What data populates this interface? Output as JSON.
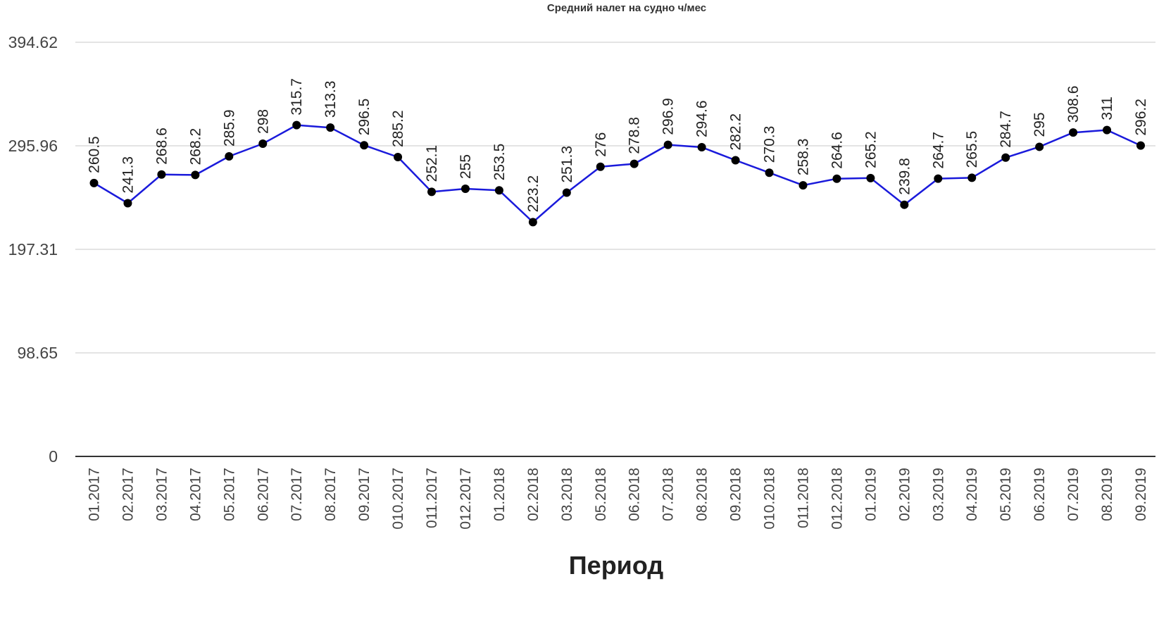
{
  "chart_data": {
    "type": "line",
    "title": "Средний налет на судно ч/мес",
    "xlabel": "Период",
    "ylabel": "",
    "ylim": [
      0,
      394.62
    ],
    "yticks": [
      "0",
      "98.65",
      "197.31",
      "295.96",
      "394.62"
    ],
    "grid": true,
    "line_color": "#1a1adb",
    "marker_color": "#000000",
    "categories": [
      "01.2017",
      "02.2017",
      "03.2017",
      "04.2017",
      "05.2017",
      "06.2017",
      "07.2017",
      "08.2017",
      "09.2017",
      "010.2017",
      "011.2017",
      "012.2017",
      "01.2018",
      "02.2018",
      "03.2018",
      "05.2018",
      "06.2018",
      "07.2018",
      "08.2018",
      "09.2018",
      "010.2018",
      "011.2018",
      "012.2018",
      "01.2019",
      "02.2019",
      "03.2019",
      "04.2019",
      "05.2019",
      "06.2019",
      "07.2019",
      "08.2019",
      "09.2019"
    ],
    "series": [
      {
        "values": [
          260.5,
          241.3,
          268.6,
          268.2,
          285.9,
          298,
          315.7,
          313.3,
          296.5,
          285.2,
          252.1,
          255,
          253.5,
          223.2,
          251.3,
          276,
          278.8,
          296.9,
          294.6,
          282.2,
          270.3,
          258.3,
          264.6,
          265.2,
          239.8,
          264.7,
          265.5,
          284.7,
          295,
          308.6,
          311,
          296.2
        ],
        "labels": [
          "260.5",
          "241.3",
          "268.6",
          "268.2",
          "285.9",
          "298",
          "315.7",
          "313.3",
          "296.5",
          "285.2",
          "252.1",
          "255",
          "253.5",
          "223.2",
          "251.3",
          "276",
          "278.8",
          "296.9",
          "294.6",
          "282.2",
          "270.3",
          "258.3",
          "264.6",
          "265.2",
          "239.8",
          "264.7",
          "265.5",
          "284.7",
          "295",
          "308.6",
          "311",
          "296.2"
        ]
      }
    ]
  }
}
